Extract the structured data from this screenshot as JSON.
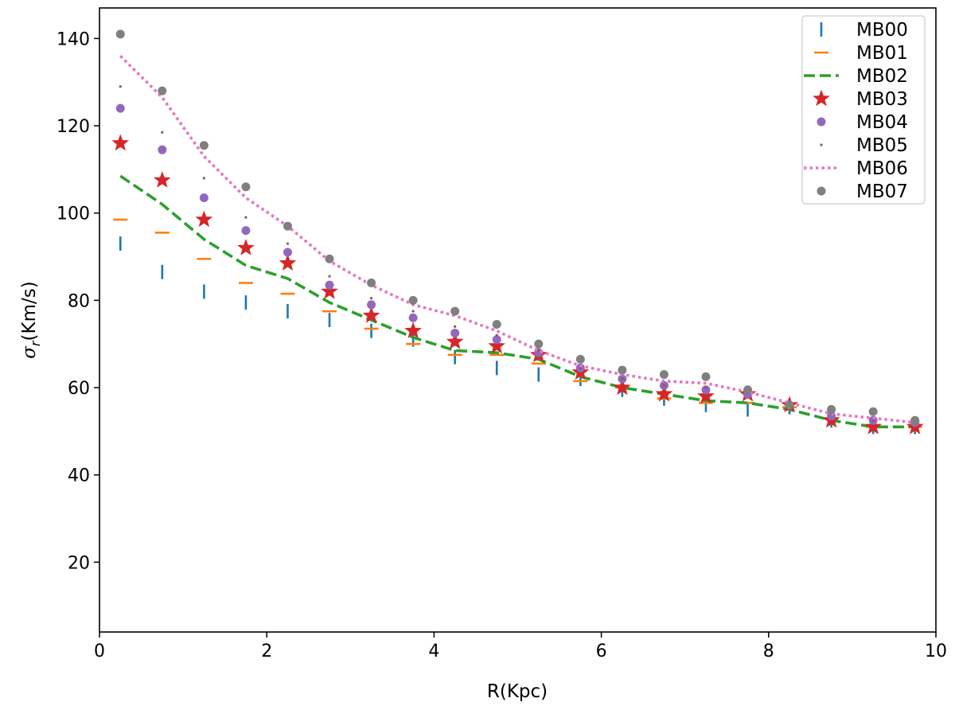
{
  "chart_data": {
    "type": "scatter",
    "xlabel": "R(Kpc)",
    "ylabel_symbol": "σ",
    "ylabel_subscript": "r",
    "ylabel_unit": "(Km/s)",
    "xlim": [
      0,
      10
    ],
    "ylim": [
      4,
      147
    ],
    "xticks": [
      0,
      2,
      4,
      6,
      8,
      10
    ],
    "yticks": [
      20,
      40,
      60,
      80,
      100,
      120,
      140
    ],
    "grid": false,
    "legend_position": "top-right",
    "x": [
      0.25,
      0.75,
      1.25,
      1.75,
      2.25,
      2.75,
      3.25,
      3.75,
      4.25,
      4.75,
      5.25,
      5.75,
      6.25,
      6.75,
      7.25,
      7.75,
      8.25,
      8.75,
      9.25,
      9.75
    ],
    "series": [
      {
        "name": "MB00",
        "marker": "vline",
        "color": "#1f77b4",
        "values": [
          93,
          86.5,
          82,
          79.5,
          77.5,
          75.5,
          73,
          71,
          67,
          64.5,
          63,
          62,
          59.5,
          57.5,
          56,
          55,
          55.5,
          52.5,
          51,
          51
        ]
      },
      {
        "name": "MB01",
        "marker": "hline",
        "color": "#ff7f0e",
        "values": [
          98.5,
          95.5,
          89.5,
          84,
          81.5,
          77.5,
          73.5,
          70,
          67.5,
          67.5,
          65.5,
          61.5,
          60,
          57.5,
          56.5,
          56.5,
          55.5,
          53,
          51,
          51
        ]
      },
      {
        "name": "MB02",
        "marker": "dashed-line",
        "color": "#2ca02c",
        "values": [
          108.5,
          102,
          94,
          88,
          85,
          79.5,
          75.5,
          71.5,
          68.5,
          68,
          66.5,
          62.5,
          60,
          58.5,
          57,
          56.5,
          55,
          52.5,
          51,
          51
        ]
      },
      {
        "name": "MB03",
        "marker": "star",
        "color": "#d62728",
        "values": [
          116,
          107.5,
          98.5,
          92,
          88.5,
          82,
          76.5,
          73,
          70.5,
          69.5,
          67.5,
          63.5,
          60,
          58.5,
          58,
          58.5,
          56,
          52.5,
          51,
          51
        ]
      },
      {
        "name": "MB04",
        "marker": "circle",
        "color": "#9467bd",
        "values": [
          124,
          114.5,
          103.5,
          96,
          91,
          83.5,
          79,
          76,
          72.5,
          71,
          68,
          64.5,
          62,
          60.5,
          59.5,
          58.5,
          56,
          53.5,
          52.5,
          52
        ]
      },
      {
        "name": "MB05",
        "marker": "point",
        "color": "#8c564b",
        "values": [
          129,
          118.5,
          108,
          99,
          93,
          85.5,
          80.5,
          77.5,
          74,
          72,
          68.5,
          64.5,
          62,
          60.5,
          60,
          59,
          57,
          54,
          52.5,
          52
        ]
      },
      {
        "name": "MB06",
        "marker": "dotted-line",
        "color": "#e377c2",
        "values": [
          136,
          126.5,
          113,
          103.5,
          97,
          89,
          83.5,
          79,
          76.5,
          73,
          68.5,
          65,
          63,
          61.5,
          61,
          59,
          56.5,
          54,
          53,
          52
        ]
      },
      {
        "name": "MB07",
        "marker": "circle",
        "color": "#7f7f7f",
        "values": [
          141,
          128,
          115.5,
          106,
          97,
          89.5,
          84,
          80,
          77.5,
          74.5,
          70,
          66.5,
          64,
          63,
          62.5,
          59.5,
          56,
          55,
          54.5,
          52.5
        ]
      }
    ]
  }
}
